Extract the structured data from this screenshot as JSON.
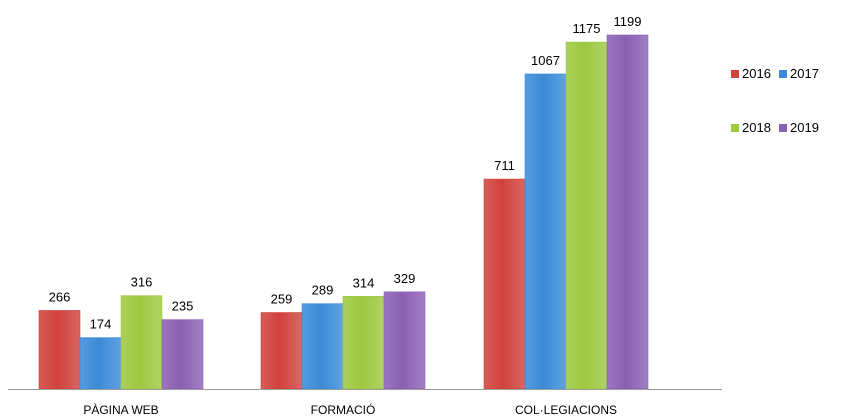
{
  "chart_data": {
    "type": "bar",
    "categories": [
      "PÀGINA WEB",
      "FORMACIÓ",
      "COL·LEGIACIONS"
    ],
    "series": [
      {
        "name": "2016",
        "color": "#d0413c",
        "values": [
          266,
          259,
          711
        ]
      },
      {
        "name": "2017",
        "color": "#3a8ad8",
        "values": [
          174,
          289,
          1067
        ]
      },
      {
        "name": "2018",
        "color": "#9dc83f",
        "values": [
          316,
          314,
          1175
        ]
      },
      {
        "name": "2019",
        "color": "#8a5fb4",
        "values": [
          235,
          329,
          1199
        ]
      }
    ],
    "ylim": [
      0,
      1199
    ],
    "grid": false,
    "legend_position": "right",
    "data_labels": true
  }
}
